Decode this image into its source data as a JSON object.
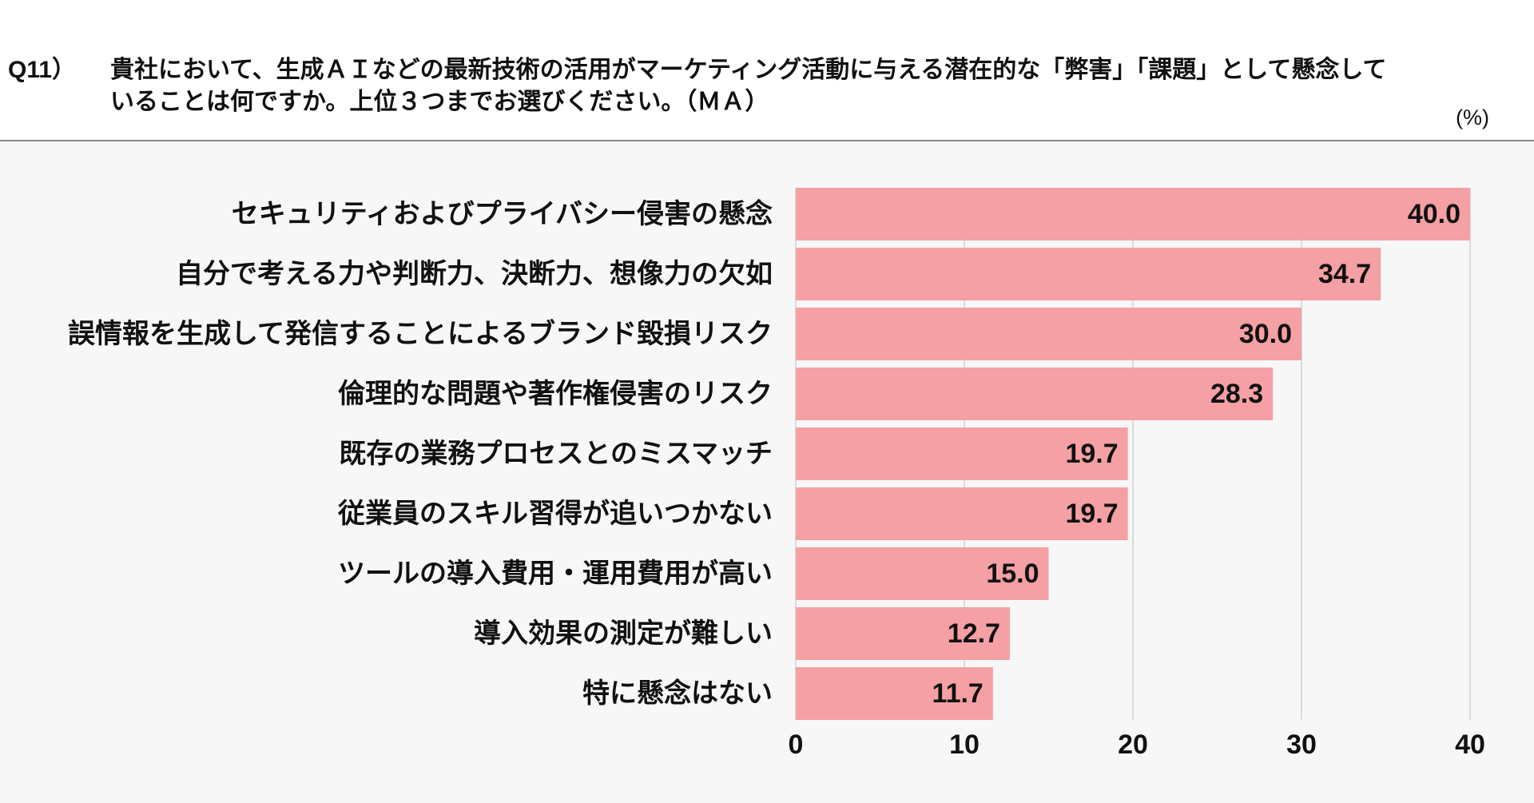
{
  "question": {
    "number": "Q11）",
    "lines": [
      "貴社において、生成ＡＩなどの最新技術の活用がマーケティング活動に与える潜在的な「弊害」「課題」として懸念して",
      "いることは何ですか。上位３つまでお選びください。（ＭＡ）"
    ]
  },
  "chart_data": {
    "type": "bar",
    "orientation": "horizontal",
    "unit_label": "(%)",
    "categories": [
      "セキュリティおよびプライバシー侵害の懸念",
      "自分で考える力や判断力、決断力、想像力の欠如",
      "誤情報を生成して発信することによるブランド毀損リスク",
      "倫理的な問題や著作権侵害のリスク",
      "既存の業務プロセスとのミスマッチ",
      "従業員のスキル習得が追いつかない",
      "ツールの導入費用・運用費用が高い",
      "導入効果の測定が難しい",
      "特に懸念はない"
    ],
    "values": [
      40.0,
      34.7,
      30.0,
      28.3,
      19.7,
      19.7,
      15.0,
      12.7,
      11.7
    ],
    "data_labels": [
      "40.0",
      "34.7",
      "30.0",
      "28.3",
      "19.7",
      "19.7",
      "15.0",
      "12.7",
      "11.7"
    ],
    "x_ticks": [
      0,
      10,
      20,
      30,
      40
    ],
    "xlim": [
      0,
      40
    ],
    "grid": true
  },
  "colors": {
    "bar": "#f5a0a4",
    "gridline": "#d2d2d2",
    "chart_background": "#f7f7f7",
    "text": "#111111"
  }
}
